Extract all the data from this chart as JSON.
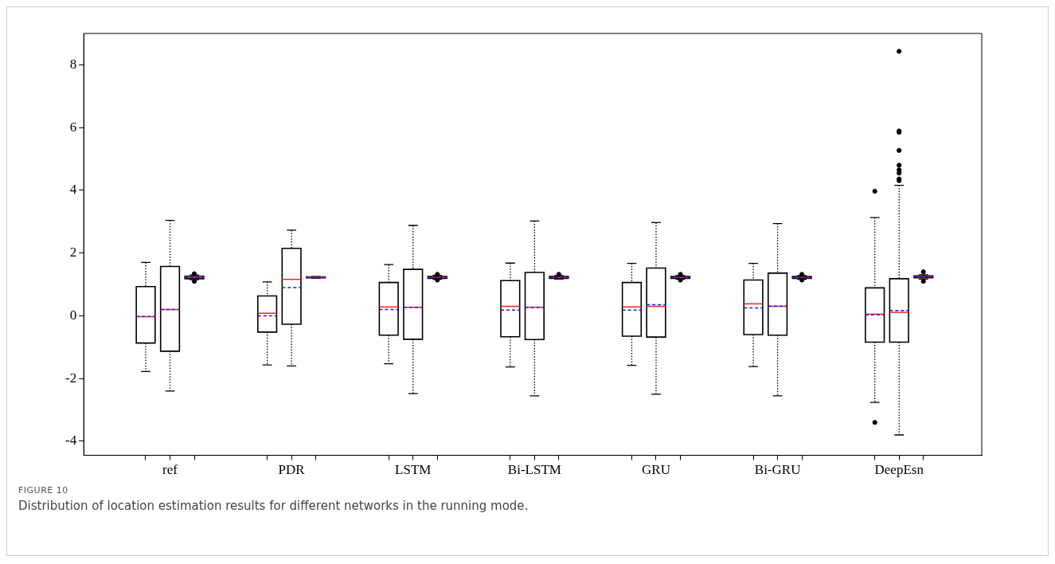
{
  "chart_data": {
    "type": "box",
    "categories": [
      "ref",
      "PDR",
      "LSTM",
      "Bi-LSTM",
      "GRU",
      "Bi-GRU",
      "DeepEsn"
    ],
    "ylim": [
      -4.45,
      9
    ],
    "yticks": [
      -4,
      -2,
      0,
      2,
      4,
      6,
      8
    ],
    "grid": false,
    "legend": false,
    "annotations": [
      "FIGURE 10",
      "Distribution of location estimation results for different networks in the running mode."
    ],
    "series": [
      {
        "color": "#000000",
        "boxes": [
          {
            "low": -1.78,
            "q1": -0.87,
            "median": -0.03,
            "q3": 0.93,
            "high": 1.7,
            "mean": -0.02
          },
          {
            "low": -1.57,
            "q1": -0.52,
            "median": 0.08,
            "q3": 0.63,
            "high": 1.08,
            "mean": 0.0
          },
          {
            "low": -1.53,
            "q1": -0.62,
            "median": 0.28,
            "q3": 1.06,
            "high": 1.63,
            "mean": 0.2
          },
          {
            "low": -1.63,
            "q1": -0.67,
            "median": 0.3,
            "q3": 1.12,
            "high": 1.68,
            "mean": 0.18
          },
          {
            "low": -1.58,
            "q1": -0.65,
            "median": 0.28,
            "q3": 1.06,
            "high": 1.67,
            "mean": 0.18
          },
          {
            "low": -1.62,
            "q1": -0.6,
            "median": 0.38,
            "q3": 1.14,
            "high": 1.67,
            "mean": 0.25
          },
          {
            "low": -2.76,
            "q1": -0.84,
            "median": 0.05,
            "q3": 0.89,
            "high": 3.13,
            "mean": 0.03,
            "outliers": [
              3.97,
              -3.4
            ]
          }
        ]
      },
      {
        "color": "#000000",
        "boxes": [
          {
            "low": -2.4,
            "q1": -1.13,
            "median": 0.2,
            "q3": 1.57,
            "high": 3.04,
            "mean": 0.2
          },
          {
            "low": -1.6,
            "q1": -0.27,
            "median": 1.16,
            "q3": 2.15,
            "high": 2.73,
            "mean": 0.9
          },
          {
            "low": -2.48,
            "q1": -0.75,
            "median": 0.27,
            "q3": 1.48,
            "high": 2.88,
            "mean": 0.27
          },
          {
            "low": -2.55,
            "q1": -0.76,
            "median": 0.27,
            "q3": 1.38,
            "high": 3.02,
            "mean": 0.27
          },
          {
            "low": -2.5,
            "q1": -0.68,
            "median": 0.3,
            "q3": 1.52,
            "high": 2.97,
            "mean": 0.35
          },
          {
            "low": -2.55,
            "q1": -0.62,
            "median": 0.3,
            "q3": 1.36,
            "high": 2.94,
            "mean": 0.31
          },
          {
            "low": -3.8,
            "q1": -0.84,
            "median": 0.11,
            "q3": 1.18,
            "high": 4.16,
            "mean": 0.17,
            "outliers": [
              8.43,
              5.89,
              5.85,
              5.27,
              4.8,
              4.65,
              4.55,
              4.36,
              4.31
            ]
          }
        ]
      },
      {
        "color": "#000000",
        "boxes": [
          {
            "low": 1.15,
            "q1": 1.18,
            "median": 1.22,
            "q3": 1.26,
            "high": 1.3,
            "mean": 1.22,
            "outliers": [
              1.1,
              1.34
            ]
          },
          {
            "low": 1.2,
            "q1": 1.21,
            "median": 1.23,
            "q3": 1.24,
            "high": 1.25,
            "mean": 1.23
          },
          {
            "low": 1.16,
            "q1": 1.19,
            "median": 1.22,
            "q3": 1.25,
            "high": 1.29,
            "mean": 1.22,
            "outliers": [
              1.14,
              1.32
            ]
          },
          {
            "low": 1.17,
            "q1": 1.19,
            "median": 1.22,
            "q3": 1.25,
            "high": 1.28,
            "mean": 1.22,
            "outliers": [
              1.32
            ]
          },
          {
            "low": 1.16,
            "q1": 1.19,
            "median": 1.22,
            "q3": 1.25,
            "high": 1.28,
            "mean": 1.22,
            "outliers": [
              1.14,
              1.32
            ]
          },
          {
            "low": 1.16,
            "q1": 1.19,
            "median": 1.22,
            "q3": 1.25,
            "high": 1.28,
            "mean": 1.22,
            "outliers": [
              1.14,
              1.32
            ]
          },
          {
            "low": 1.17,
            "q1": 1.21,
            "median": 1.24,
            "q3": 1.27,
            "high": 1.31,
            "mean": 1.25,
            "outliers": [
              1.1,
              1.4
            ]
          }
        ]
      }
    ]
  }
}
